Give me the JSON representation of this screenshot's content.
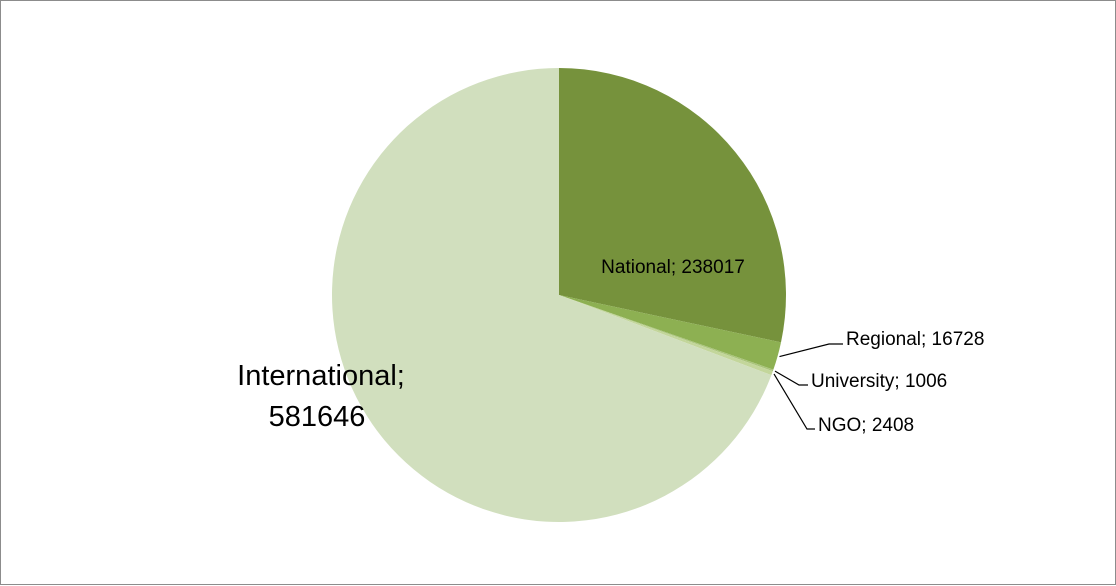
{
  "chart_data": {
    "type": "pie",
    "title": "",
    "start_angle_deg": 0,
    "direction": "clockwise",
    "legend": "none",
    "slices": [
      {
        "name": "National",
        "value": 238017,
        "color": "#76923c",
        "label": "National; 238017"
      },
      {
        "name": "Regional",
        "value": 16728,
        "color": "#8db052",
        "label": "Regional; 16728"
      },
      {
        "name": "University",
        "value": 1006,
        "color": "#a9c47a",
        "label": "University; 1006"
      },
      {
        "name": "NGO",
        "value": 2408,
        "color": "#c3d69b",
        "label": "NGO; 2408"
      },
      {
        "name": "International",
        "value": 581646,
        "color": "#d1dfbe",
        "label_line1": "International;",
        "label_line2": "581646"
      }
    ]
  }
}
